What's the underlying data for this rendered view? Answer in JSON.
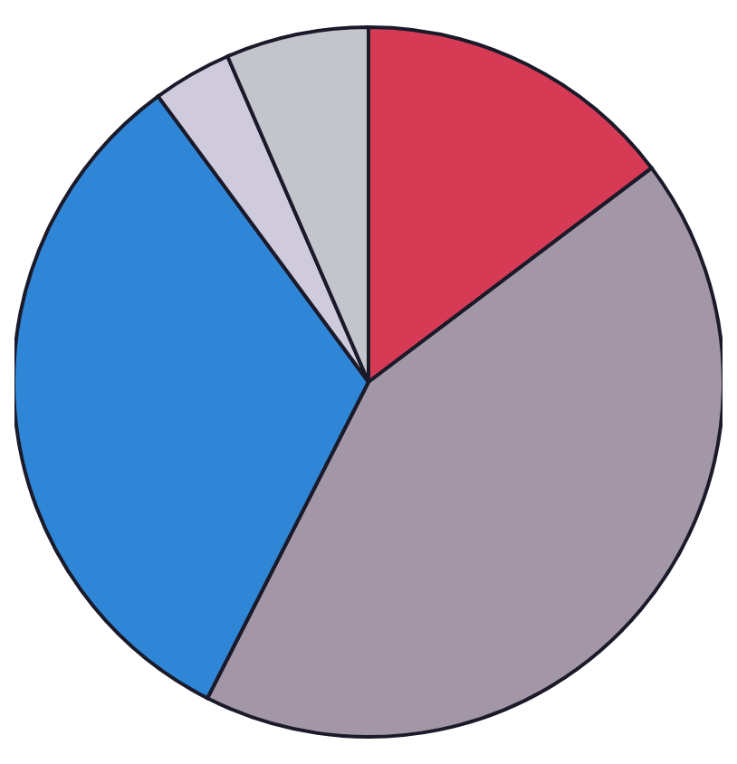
{
  "chart_data": {
    "type": "pie",
    "categories": [
      null,
      null,
      null,
      null,
      null
    ],
    "values": [
      14.7,
      42.8,
      32.4,
      3.6,
      6.5
    ],
    "colors": [
      "#d63a55",
      "#a396a6",
      "#2f86d6",
      "#cfcbdc",
      "#c4c4cc"
    ]
  }
}
